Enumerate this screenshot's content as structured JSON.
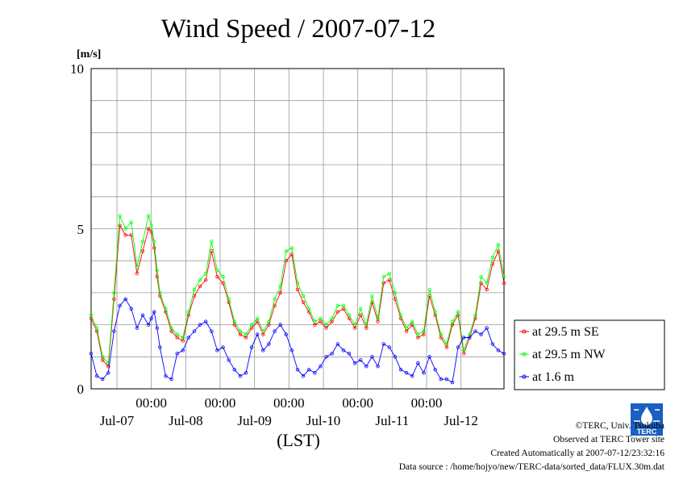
{
  "chart_data": {
    "type": "line",
    "title": "Wind Speed / 2007-07-12",
    "ylabel": "[m/s]",
    "xlabel": "(LST)",
    "ylim": [
      0,
      10
    ],
    "yticks": [
      "0",
      "5",
      "10"
    ],
    "x_time_labels": [
      "00:00",
      "00:00",
      "00:00",
      "00:00",
      "00:00"
    ],
    "x_date_labels": [
      "Jul-07",
      "Jul-08",
      "Jul-09",
      "Jul-10",
      "Jul-11",
      "Jul-12"
    ],
    "x_unit": "hours since Jul-07 00:00",
    "xlim": [
      -21,
      123
    ],
    "grid": true,
    "legend_position": "right",
    "series": [
      {
        "name": "at 29.5 m SE",
        "color": "#ff0000",
        "x": [
          -21,
          -19,
          -17,
          -15,
          -13,
          -11,
          -9,
          -7,
          -5,
          -3,
          -1,
          0,
          1,
          2,
          3,
          5,
          7,
          9,
          11,
          13,
          15,
          17,
          19,
          21,
          23,
          25,
          27,
          29,
          31,
          33,
          35,
          37,
          39,
          41,
          43,
          45,
          47,
          49,
          51,
          53,
          55,
          57,
          59,
          61,
          63,
          65,
          67,
          69,
          71,
          73,
          75,
          77,
          79,
          81,
          83,
          85,
          87,
          89,
          91,
          93,
          95,
          97,
          99,
          101,
          103,
          105,
          107,
          109,
          111,
          113,
          115,
          117,
          119,
          121,
          123
        ],
        "values": [
          2.2,
          1.8,
          0.9,
          0.7,
          2.8,
          5.1,
          4.8,
          4.8,
          3.6,
          4.3,
          5.0,
          4.9,
          4.4,
          3.5,
          2.9,
          2.4,
          1.8,
          1.6,
          1.5,
          2.3,
          2.9,
          3.2,
          3.4,
          4.3,
          3.5,
          3.3,
          2.7,
          2.0,
          1.7,
          1.6,
          1.9,
          2.1,
          1.7,
          2.0,
          2.6,
          3.0,
          4.0,
          4.2,
          3.1,
          2.7,
          2.4,
          2.0,
          2.1,
          1.9,
          2.1,
          2.4,
          2.5,
          2.2,
          1.9,
          2.3,
          1.9,
          2.7,
          2.1,
          3.3,
          3.4,
          2.8,
          2.2,
          1.8,
          2.0,
          1.6,
          1.7,
          2.9,
          2.3,
          1.6,
          1.3,
          2.0,
          2.3,
          1.1,
          1.6,
          2.2,
          3.3,
          3.1,
          3.9,
          4.3,
          3.3
        ]
      },
      {
        "name": "at 29.5 m NW",
        "color": "#00ff00",
        "x": [
          -21,
          -19,
          -17,
          -15,
          -13,
          -11,
          -9,
          -7,
          -5,
          -3,
          -1,
          0,
          1,
          2,
          3,
          5,
          7,
          9,
          11,
          13,
          15,
          17,
          19,
          21,
          23,
          25,
          27,
          29,
          31,
          33,
          35,
          37,
          39,
          41,
          43,
          45,
          47,
          49,
          51,
          53,
          55,
          57,
          59,
          61,
          63,
          65,
          67,
          69,
          71,
          73,
          75,
          77,
          79,
          81,
          83,
          85,
          87,
          89,
          91,
          93,
          95,
          97,
          99,
          101,
          103,
          105,
          107,
          109,
          111,
          113,
          115,
          117,
          119,
          121,
          123
        ],
        "values": [
          2.3,
          1.9,
          1.0,
          0.8,
          3.0,
          5.4,
          5.0,
          5.2,
          3.8,
          4.6,
          5.4,
          5.1,
          4.6,
          3.7,
          3.0,
          2.5,
          1.9,
          1.7,
          1.6,
          2.4,
          3.1,
          3.4,
          3.6,
          4.6,
          3.7,
          3.5,
          2.8,
          2.1,
          1.8,
          1.7,
          2.0,
          2.2,
          1.8,
          2.1,
          2.8,
          3.2,
          4.3,
          4.4,
          3.3,
          2.9,
          2.5,
          2.1,
          2.2,
          2.0,
          2.2,
          2.6,
          2.6,
          2.3,
          2.0,
          2.5,
          2.0,
          2.9,
          2.2,
          3.5,
          3.6,
          3.0,
          2.3,
          1.9,
          2.1,
          1.7,
          1.8,
          3.1,
          2.4,
          1.7,
          1.4,
          2.1,
          2.4,
          1.2,
          1.7,
          2.3,
          3.5,
          3.3,
          4.1,
          4.5,
          3.5
        ]
      },
      {
        "name": "at 1.6 m",
        "color": "#0000ff",
        "x": [
          -21,
          -19,
          -17,
          -15,
          -13,
          -11,
          -9,
          -7,
          -5,
          -3,
          -1,
          0,
          1,
          2,
          3,
          5,
          7,
          9,
          11,
          13,
          15,
          17,
          19,
          21,
          23,
          25,
          27,
          29,
          31,
          33,
          35,
          37,
          39,
          41,
          43,
          45,
          47,
          49,
          51,
          53,
          55,
          57,
          59,
          61,
          63,
          65,
          67,
          69,
          71,
          73,
          75,
          77,
          79,
          81,
          83,
          85,
          87,
          89,
          91,
          93,
          95,
          97,
          99,
          101,
          103,
          105,
          107,
          109,
          111,
          113,
          115,
          117,
          119,
          121,
          123
        ],
        "values": [
          1.1,
          0.4,
          0.3,
          0.5,
          1.8,
          2.6,
          2.8,
          2.5,
          1.9,
          2.3,
          2.0,
          2.2,
          2.4,
          1.9,
          1.3,
          0.4,
          0.3,
          1.1,
          1.2,
          1.6,
          1.8,
          2.0,
          2.1,
          1.8,
          1.2,
          1.3,
          0.9,
          0.6,
          0.4,
          0.5,
          1.3,
          1.7,
          1.2,
          1.4,
          1.8,
          2.0,
          1.7,
          1.2,
          0.6,
          0.4,
          0.6,
          0.5,
          0.7,
          1.0,
          1.1,
          1.4,
          1.2,
          1.1,
          0.8,
          0.9,
          0.7,
          1.0,
          0.7,
          1.4,
          1.3,
          1.0,
          0.6,
          0.5,
          0.4,
          0.8,
          0.5,
          1.0,
          0.6,
          0.3,
          0.3,
          0.2,
          1.3,
          1.6,
          1.6,
          1.8,
          1.7,
          1.9,
          1.4,
          1.2,
          1.1
        ]
      }
    ]
  },
  "footer": {
    "copyright": "©TERC, Univ. Tsukuba",
    "observed": "Observed at TERC Tower site",
    "created": "Created Automatically at 2007-07-12/23:32:16",
    "source": "Data source : /home/hojyo/new/TERC-data/sorted_data/FLUX.30m.dat"
  },
  "logo": {
    "text": "TERC",
    "color": "#1a5fc2"
  }
}
